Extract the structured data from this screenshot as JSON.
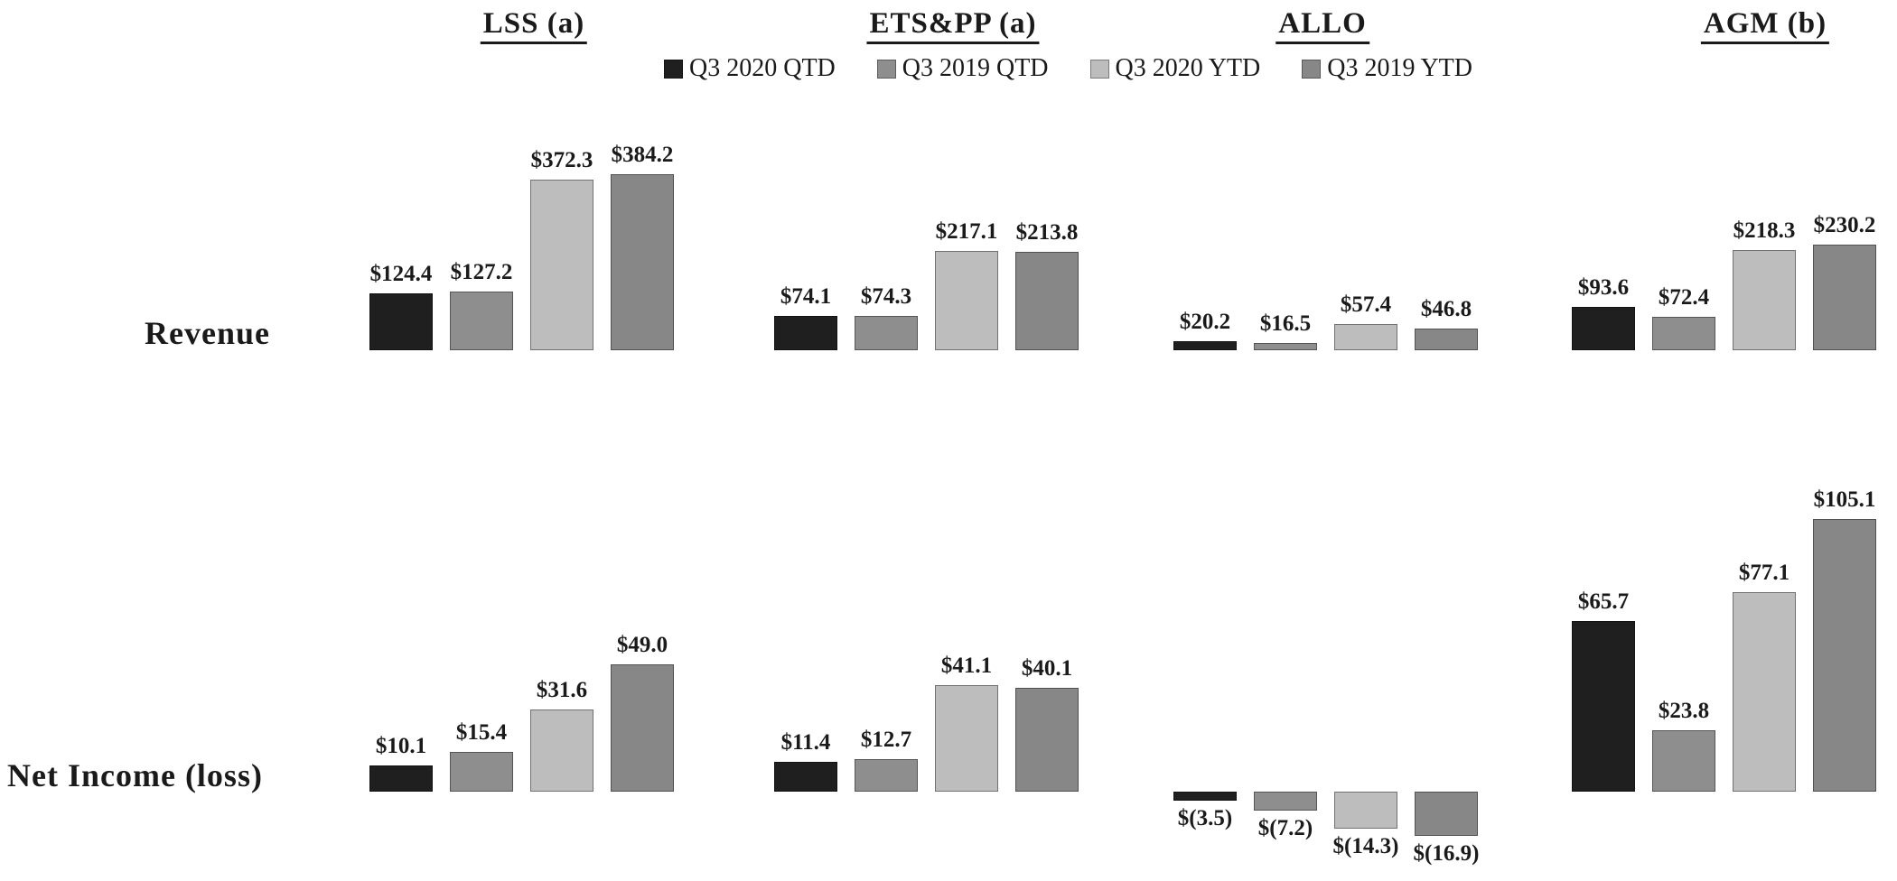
{
  "page": {
    "background": "#ffffff",
    "text_color": "#1a1a1a"
  },
  "segment_headers": [
    "LSS (a)",
    "ETS&PP (a)",
    "ALLO",
    "AGM (b)"
  ],
  "legend": {
    "items": [
      {
        "label": "Q3 2020 QTD",
        "color": "#1f1f1f"
      },
      {
        "label": "Q3 2019 QTD",
        "color": "#8e8e8e"
      },
      {
        "label": "Q3 2020 YTD",
        "color": "#bdbdbd"
      },
      {
        "label": "Q3 2019 YTD",
        "color": "#878787"
      }
    ]
  },
  "chart_data": [
    {
      "type": "bar",
      "row_label": "Revenue",
      "series": [
        "Q3 2020 QTD",
        "Q3 2019 QTD",
        "Q3 2020 YTD",
        "Q3 2019 YTD"
      ],
      "legend_position": "top-center",
      "grid": false,
      "axis_labels_visible": false,
      "groups": [
        {
          "name": "LSS (a)",
          "values": [
            124.4,
            127.2,
            372.3,
            384.2
          ],
          "labels": [
            "$124.4",
            "$127.2",
            "$372.3",
            "$384.2"
          ]
        },
        {
          "name": "ETS&PP (a)",
          "values": [
            74.1,
            74.3,
            217.1,
            213.8
          ],
          "labels": [
            "$74.1",
            "$74.3",
            "$217.1",
            "$213.8"
          ]
        },
        {
          "name": "ALLO",
          "values": [
            20.2,
            16.5,
            57.4,
            46.8
          ],
          "labels": [
            "$20.2",
            "$16.5",
            "$57.4",
            "$46.8"
          ]
        },
        {
          "name": "AGM (b)",
          "values": [
            93.6,
            72.4,
            218.3,
            230.2
          ],
          "labels": [
            "$93.6",
            "$72.4",
            "$218.3",
            "$230.2"
          ]
        }
      ]
    },
    {
      "type": "bar",
      "row_label": "Net Income (loss)",
      "series": [
        "Q3 2020 QTD",
        "Q3 2019 QTD",
        "Q3 2020 YTD",
        "Q3 2019 YTD"
      ],
      "legend_position": "shared-top",
      "grid": false,
      "axis_labels_visible": false,
      "groups": [
        {
          "name": "LSS (a)",
          "values": [
            10.1,
            15.4,
            31.6,
            49.0
          ],
          "labels": [
            "$10.1",
            "$15.4",
            "$31.6",
            "$49.0"
          ]
        },
        {
          "name": "ETS&PP (a)",
          "values": [
            11.4,
            12.7,
            41.1,
            40.1
          ],
          "labels": [
            "$11.4",
            "$12.7",
            "$41.1",
            "$40.1"
          ]
        },
        {
          "name": "ALLO",
          "values": [
            -3.5,
            -7.2,
            -14.3,
            -16.9
          ],
          "labels": [
            "$(3.5)",
            "$(7.2)",
            "$(14.3)",
            "$(16.9)"
          ]
        },
        {
          "name": "AGM (b)",
          "values": [
            65.7,
            23.8,
            77.1,
            105.1
          ],
          "labels": [
            "$65.7",
            "$23.8",
            "$77.1",
            "$105.1"
          ]
        }
      ]
    }
  ]
}
